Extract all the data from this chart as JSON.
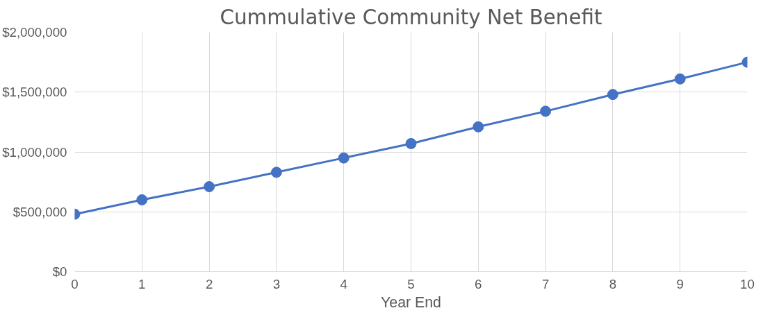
{
  "chart_data": {
    "type": "line",
    "title": "Cummulative Community Net Benefit",
    "xlabel": "Year End",
    "x": [
      0,
      1,
      2,
      3,
      4,
      5,
      6,
      7,
      8,
      9,
      10
    ],
    "series": [
      {
        "color": "#4472c4",
        "values": [
          480000,
          600000,
          710000,
          830000,
          950000,
          1070000,
          1210000,
          1340000,
          1480000,
          1610000,
          1750000
        ]
      }
    ],
    "xlim": [
      0,
      10
    ],
    "xticks": [
      0,
      1,
      2,
      3,
      4,
      5,
      6,
      7,
      8,
      9,
      10
    ],
    "ylim": [
      0,
      2000000
    ],
    "yticks": [
      {
        "value": 0,
        "label": "$0"
      },
      {
        "value": 500000,
        "label": "$500,000"
      },
      {
        "value": 1000000,
        "label": "$1,000,000"
      },
      {
        "value": 1500000,
        "label": "$1,500,000"
      },
      {
        "value": 2000000,
        "label": "$2,000,000"
      }
    ],
    "grid": true,
    "marker": "circle",
    "line_style": "solid"
  }
}
